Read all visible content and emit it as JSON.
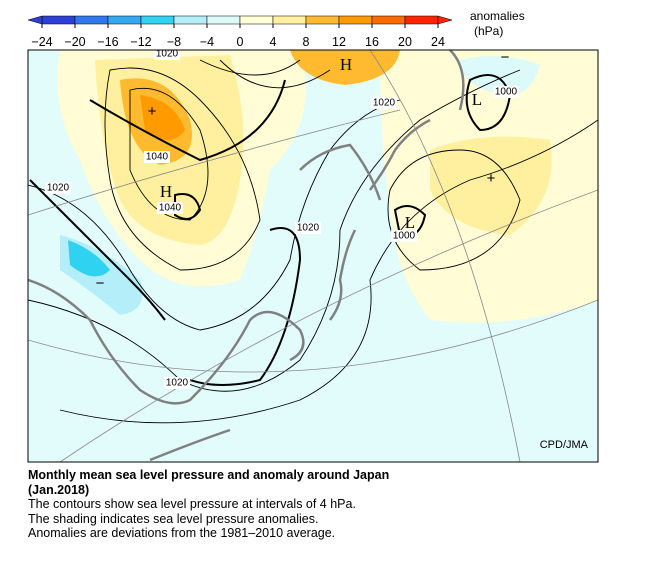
{
  "colorbar": {
    "label": "anomalies",
    "unit": "(hPa)",
    "ticks": [
      {
        "value": -24,
        "label": "−24"
      },
      {
        "value": -20,
        "label": "−20"
      },
      {
        "value": -16,
        "label": "−16"
      },
      {
        "value": -12,
        "label": "−12"
      },
      {
        "value": -8,
        "label": "−8"
      },
      {
        "value": -4,
        "label": "−4"
      },
      0,
      4,
      8,
      12,
      16,
      20,
      24
    ],
    "colors": [
      "#2c3fd6",
      "#2f78ee",
      "#35a8f2",
      "#2fd2f0",
      "#b4eef8",
      "#dcfafa",
      "#fffcd6",
      "#fff0a0",
      "#ffba30",
      "#ff9a00",
      "#ff6a00",
      "#ff2400"
    ]
  },
  "map": {
    "contour_labels": [
      {
        "text": "1020",
        "kind": "isobar"
      },
      {
        "text": "1020",
        "kind": "isobar"
      },
      {
        "text": "1040",
        "kind": "isobar"
      },
      {
        "text": "1020",
        "kind": "isobar"
      },
      {
        "text": "1040",
        "kind": "isobar"
      },
      {
        "text": "1020",
        "kind": "isobar"
      },
      {
        "text": "1000",
        "kind": "isobar"
      },
      {
        "text": "1000",
        "kind": "isobar"
      },
      {
        "text": "1020",
        "kind": "isobar"
      }
    ],
    "pressure_centers": [
      "H",
      "H",
      "L",
      "L"
    ],
    "anomaly_signs": [
      "+",
      "+",
      "−",
      "−"
    ],
    "credit": "CPD/JMA"
  },
  "caption": {
    "title": "Monthly mean sea level pressure and anomaly around Japan",
    "period": "(Jan.2018)",
    "lines": [
      "The contours show sea level pressure at intervals of 4 hPa.",
      "The shading indicates sea level pressure anomalies.",
      "Anomalies are deviations from the 1981–2010 average."
    ]
  }
}
